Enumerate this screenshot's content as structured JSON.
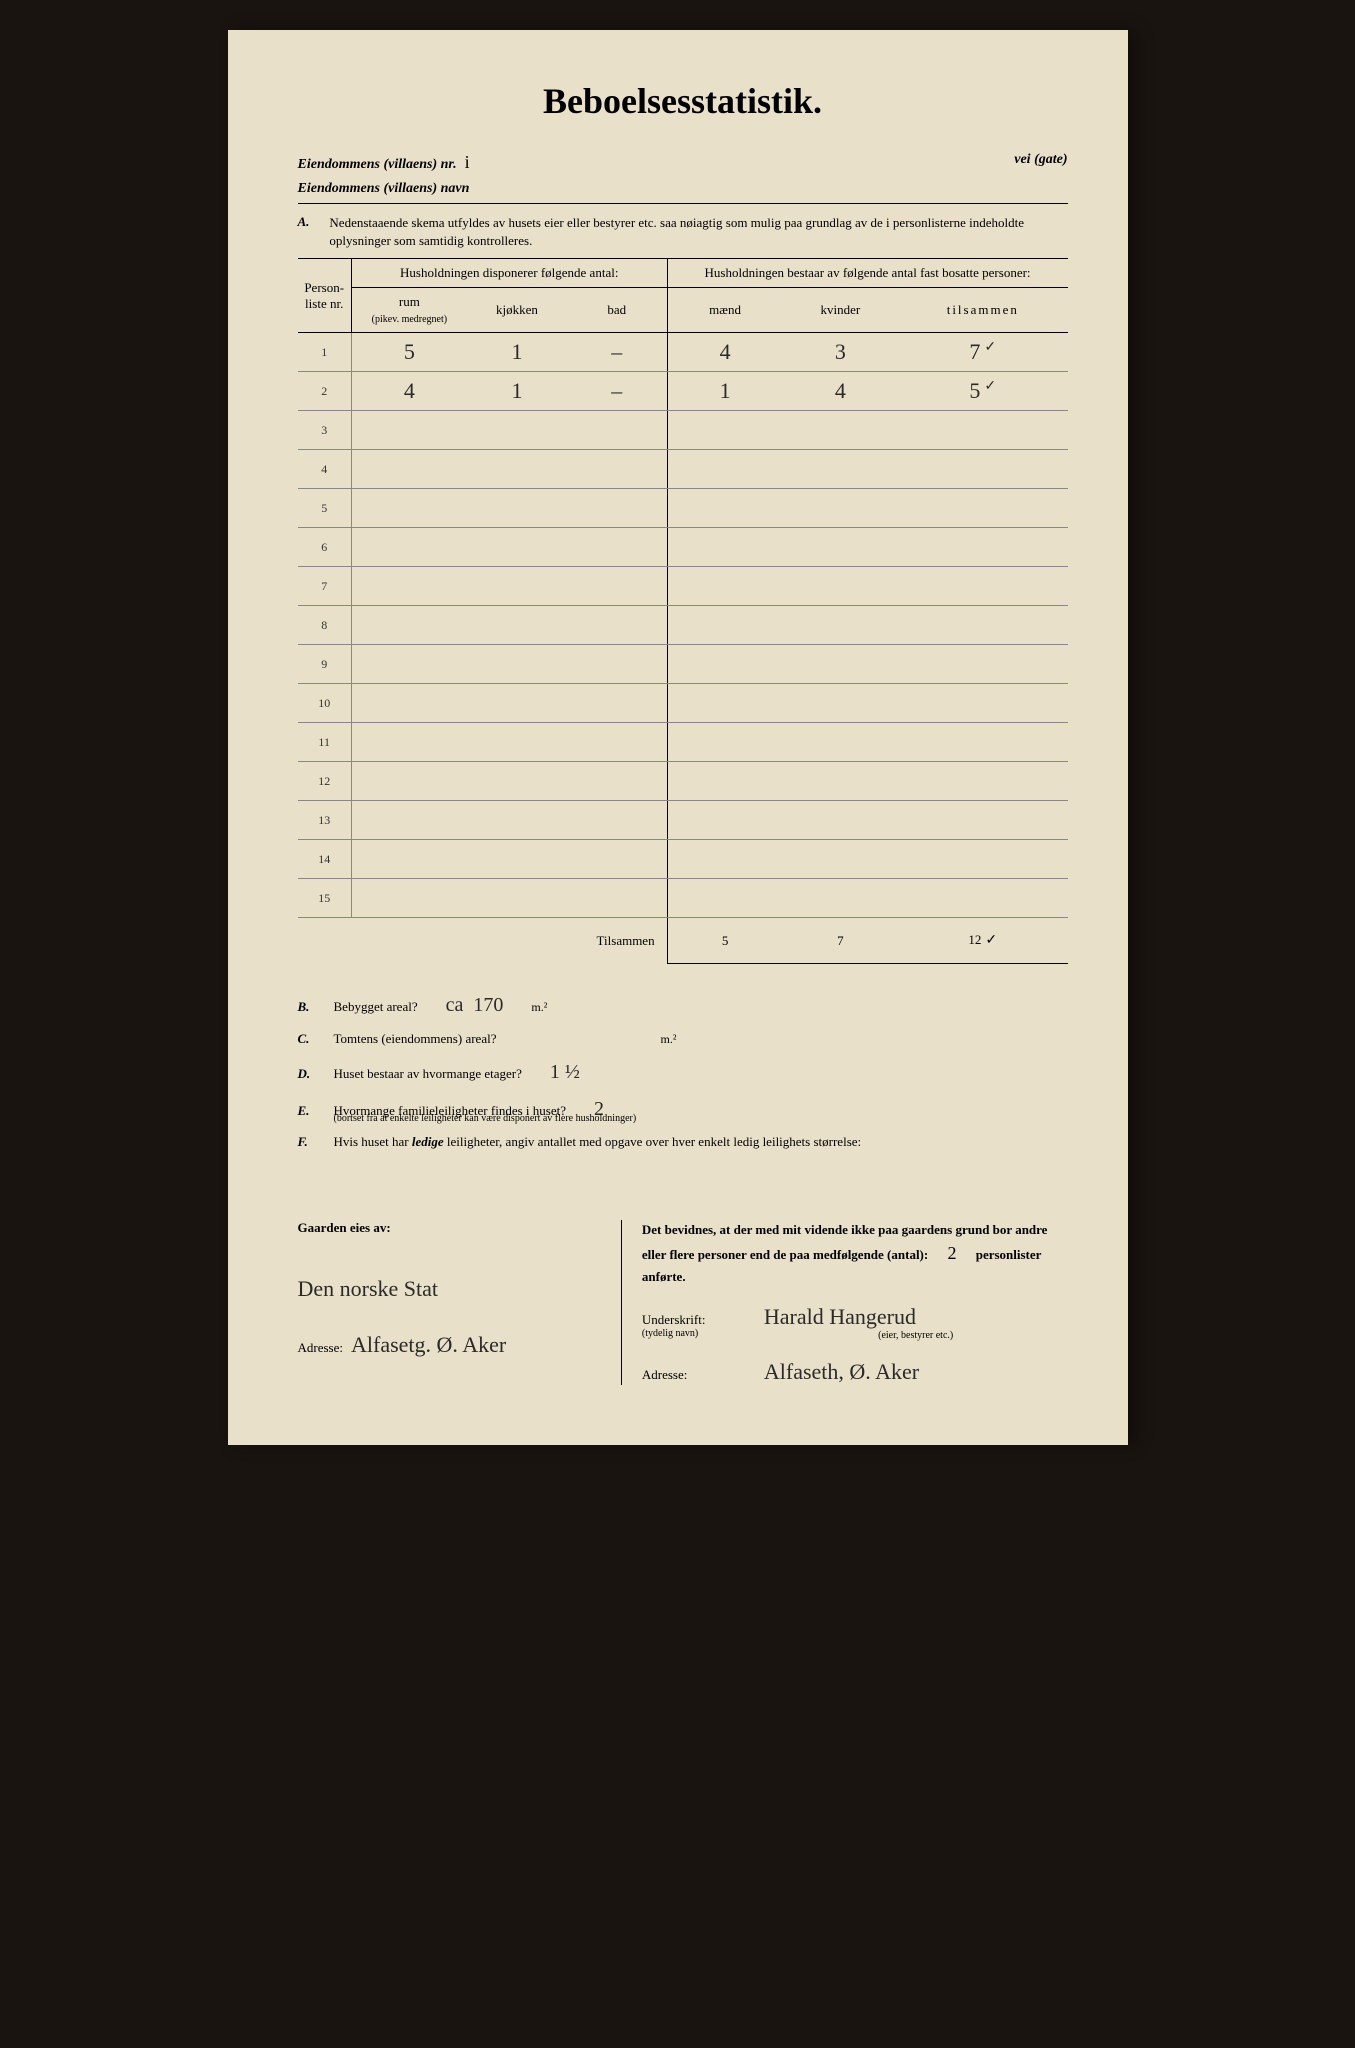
{
  "title": "Beboelsesstatistik.",
  "header": {
    "prop_nr_label": "Eiendommens (villaens) nr.",
    "prop_nr_value": "i",
    "street_label": "vei (gate)",
    "name_label": "Eiendommens (villaens) navn"
  },
  "section_a": {
    "label": "A.",
    "text": "Nedenstaaende skema utfyldes av husets eier eller bestyrer etc. saa nøiagtig som mulig paa grundlag av de i personlisterne indeholdte oplysninger som samtidig kontrolleres."
  },
  "table": {
    "col_personliste": "Person-\nliste\nnr.",
    "group_left": "Husholdningen disponerer følgende antal:",
    "group_right": "Husholdningen bestaar av følgende antal fast bosatte personer:",
    "col_rum": "rum",
    "col_rum_sub": "(pikev. medregnet)",
    "col_kjokken": "kjøkken",
    "col_bad": "bad",
    "col_maend": "mænd",
    "col_kvinder": "kvinder",
    "col_tilsammen": "tilsammen",
    "rows": [
      {
        "nr": "1",
        "rum": "5",
        "kjokken": "1",
        "bad": "–",
        "maend": "4",
        "kvinder": "3",
        "tilsammen": "7",
        "check": "✓"
      },
      {
        "nr": "2",
        "rum": "4",
        "kjokken": "1",
        "bad": "–",
        "maend": "1",
        "kvinder": "4",
        "tilsammen": "5",
        "check": "✓"
      },
      {
        "nr": "3",
        "rum": "",
        "kjokken": "",
        "bad": "",
        "maend": "",
        "kvinder": "",
        "tilsammen": "",
        "check": ""
      },
      {
        "nr": "4",
        "rum": "",
        "kjokken": "",
        "bad": "",
        "maend": "",
        "kvinder": "",
        "tilsammen": "",
        "check": ""
      },
      {
        "nr": "5",
        "rum": "",
        "kjokken": "",
        "bad": "",
        "maend": "",
        "kvinder": "",
        "tilsammen": "",
        "check": ""
      },
      {
        "nr": "6",
        "rum": "",
        "kjokken": "",
        "bad": "",
        "maend": "",
        "kvinder": "",
        "tilsammen": "",
        "check": ""
      },
      {
        "nr": "7",
        "rum": "",
        "kjokken": "",
        "bad": "",
        "maend": "",
        "kvinder": "",
        "tilsammen": "",
        "check": ""
      },
      {
        "nr": "8",
        "rum": "",
        "kjokken": "",
        "bad": "",
        "maend": "",
        "kvinder": "",
        "tilsammen": "",
        "check": ""
      },
      {
        "nr": "9",
        "rum": "",
        "kjokken": "",
        "bad": "",
        "maend": "",
        "kvinder": "",
        "tilsammen": "",
        "check": ""
      },
      {
        "nr": "10",
        "rum": "",
        "kjokken": "",
        "bad": "",
        "maend": "",
        "kvinder": "",
        "tilsammen": "",
        "check": ""
      },
      {
        "nr": "11",
        "rum": "",
        "kjokken": "",
        "bad": "",
        "maend": "",
        "kvinder": "",
        "tilsammen": "",
        "check": ""
      },
      {
        "nr": "12",
        "rum": "",
        "kjokken": "",
        "bad": "",
        "maend": "",
        "kvinder": "",
        "tilsammen": "",
        "check": ""
      },
      {
        "nr": "13",
        "rum": "",
        "kjokken": "",
        "bad": "",
        "maend": "",
        "kvinder": "",
        "tilsammen": "",
        "check": ""
      },
      {
        "nr": "14",
        "rum": "",
        "kjokken": "",
        "bad": "",
        "maend": "",
        "kvinder": "",
        "tilsammen": "",
        "check": ""
      },
      {
        "nr": "15",
        "rum": "",
        "kjokken": "",
        "bad": "",
        "maend": "",
        "kvinder": "",
        "tilsammen": "",
        "check": ""
      }
    ],
    "total_label": "Tilsammen",
    "total": {
      "maend": "5",
      "kvinder": "7",
      "tilsammen": "12",
      "check": "✓"
    }
  },
  "questions": {
    "b": {
      "label": "B.",
      "text": "Bebygget areal?",
      "ans_prefix": "ca",
      "ans": "170",
      "unit": "m.²"
    },
    "c": {
      "label": "C.",
      "text": "Tomtens (eiendommens) areal?",
      "ans": "",
      "unit": "m.²"
    },
    "d": {
      "label": "D.",
      "text": "Huset bestaar av hvormange etager?",
      "ans": "1 ½"
    },
    "e": {
      "label": "E.",
      "text": "Hvormange familieleiligheter findes i huset?",
      "ans": "2",
      "note": "(bortset fra at enkelte leiligheter kan være disponert av flere husholdninger)"
    },
    "f": {
      "label": "F.",
      "text": "Hvis huset har ledige leiligheter, angiv antallet med opgave over hver enkelt ledig leilighets størrelse:"
    }
  },
  "footer": {
    "owner_label": "Gaarden eies av:",
    "owner_name": "Den norske Stat",
    "owner_addr_label": "Adresse:",
    "owner_addr": "Alfasetg. Ø. Aker",
    "declaration": "Det bevidnes, at der med mit vidende ikke paa gaardens grund bor andre eller flere personer end de paa medfølgende (antal):",
    "declaration_count": "2",
    "declaration_suffix": "personlister anførte.",
    "sig_label": "Underskrift:",
    "sig_sub": "(tydelig navn)",
    "sig_value": "Harald Hangerud",
    "sig_role": "(eier, bestyrer etc.)",
    "addr_label2": "Adresse:",
    "addr_value2": "Alfaseth, Ø. Aker"
  },
  "style": {
    "paper_bg": "#e8e0c8",
    "ink": "#000000",
    "handwriting_color": "#2a2a2a"
  }
}
